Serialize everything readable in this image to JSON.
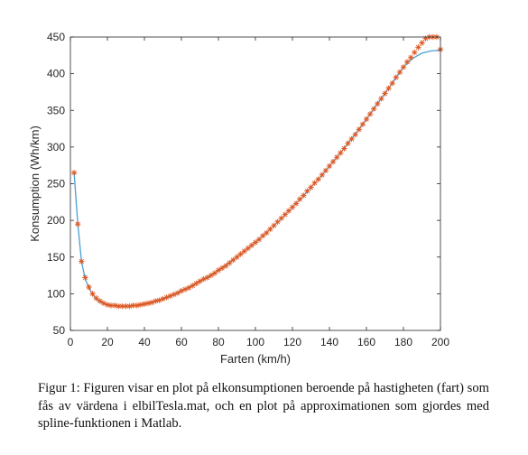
{
  "chart_data": {
    "type": "line",
    "title": "",
    "xlabel": "Farten (km/h)",
    "ylabel": "Konsumption (Wh/km)",
    "xlim": [
      0,
      200
    ],
    "ylim": [
      50,
      450
    ],
    "xticks": [
      0,
      20,
      40,
      60,
      80,
      100,
      120,
      140,
      160,
      180,
      200
    ],
    "yticks": [
      50,
      100,
      150,
      200,
      250,
      300,
      350,
      400,
      450
    ],
    "grid": false,
    "legend": "none",
    "colors": {
      "spline": "#4a9fd1",
      "data": "#e0541c",
      "axis": "#262626"
    },
    "series": [
      {
        "kind": "line",
        "x": [
          2,
          4,
          6,
          8,
          10,
          12,
          14,
          16,
          18,
          20,
          22,
          24,
          26,
          28,
          30,
          35,
          40,
          45,
          50,
          55,
          60,
          65,
          70,
          75,
          80,
          85,
          90,
          95,
          100,
          105,
          110,
          115,
          120,
          125,
          130,
          135,
          140,
          145,
          150,
          155,
          160,
          165,
          170,
          175,
          180,
          185,
          190,
          195,
          200
        ],
        "y": [
          265,
          195,
          144,
          120,
          108,
          99,
          93,
          89,
          87,
          85,
          84,
          84,
          83,
          83,
          83,
          84,
          86,
          89,
          93,
          98,
          104,
          110,
          117,
          124,
          132,
          141,
          150,
          160,
          170,
          181,
          193,
          205,
          218,
          231,
          245,
          259,
          274,
          289,
          305,
          321,
          338,
          356,
          373,
          391,
          409,
          421,
          428,
          431,
          432
        ]
      },
      {
        "kind": "markers",
        "marker": "*",
        "x": [
          2,
          4,
          6,
          8,
          10,
          12,
          14,
          16,
          18,
          20,
          22,
          24,
          26,
          28,
          30,
          32,
          34,
          36,
          38,
          40,
          42,
          44,
          46,
          48,
          50,
          52,
          54,
          56,
          58,
          60,
          62,
          64,
          66,
          68,
          70,
          72,
          74,
          76,
          78,
          80,
          82,
          84,
          86,
          88,
          90,
          92,
          94,
          96,
          98,
          100,
          102,
          104,
          106,
          108,
          110,
          112,
          114,
          116,
          118,
          120,
          122,
          124,
          126,
          128,
          130,
          132,
          134,
          136,
          138,
          140,
          142,
          144,
          146,
          148,
          150,
          152,
          154,
          156,
          158,
          160,
          162,
          164,
          166,
          168,
          170,
          172,
          174,
          176,
          178,
          180,
          182,
          184,
          186,
          188,
          190,
          192,
          194,
          196,
          198,
          200
        ],
        "y": [
          265,
          195,
          144,
          122,
          109,
          100,
          94,
          90,
          87,
          85,
          84,
          84,
          83,
          83,
          83,
          83,
          84,
          84,
          85,
          86,
          87,
          88,
          90,
          91,
          93,
          95,
          97,
          99,
          101,
          104,
          106,
          108,
          111,
          114,
          117,
          120,
          122,
          125,
          128,
          132,
          135,
          138,
          142,
          146,
          150,
          154,
          158,
          162,
          166,
          170,
          174,
          179,
          183,
          188,
          193,
          198,
          203,
          208,
          213,
          218,
          223,
          229,
          234,
          240,
          245,
          251,
          256,
          262,
          268,
          274,
          280,
          286,
          292,
          298,
          305,
          311,
          317,
          324,
          331,
          338,
          345,
          352,
          359,
          366,
          373,
          380,
          387,
          395,
          402,
          409,
          416,
          422,
          429,
          436,
          442,
          448,
          451,
          453,
          454,
          433
        ]
      }
    ]
  },
  "caption": "Figur 1: Figuren visar en plot på elkonsumptionen beroende på hastigheten (fart) som fås av värdena i elbilTesla.mat, och en plot på approximationen som gjordes med spline-funktionen i Matlab."
}
